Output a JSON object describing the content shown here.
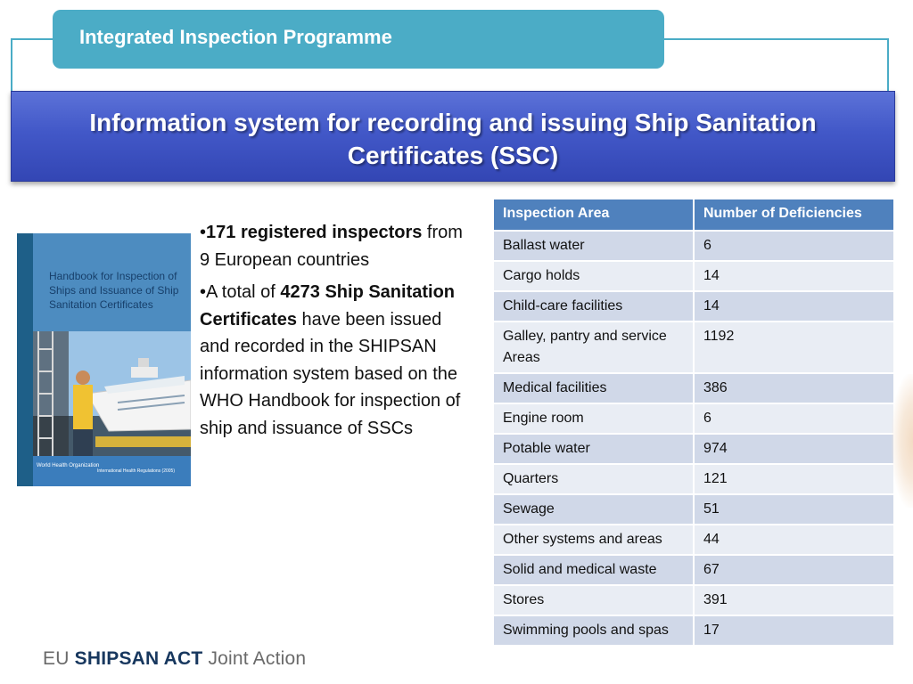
{
  "header": {
    "programme": "Integrated Inspection Programme",
    "title": "Information system for recording and issuing Ship Sanitation Certificates (SSC)"
  },
  "cover": {
    "title": "Handbook for Inspection of Ships and Issuance of Ship Sanitation Certificates",
    "org": "World Health Organization",
    "series": "International Health Regulations (2005)"
  },
  "bullets": [
    {
      "bold": "171 registered inspectors",
      "rest": " from 9 European countries"
    },
    {
      "pre": "A total of ",
      "bold": "4273 Ship Sanitation Certificates",
      "rest": " have been issued and recorded in the SHIPSAN information system based on the WHO Handbook for inspection of ship and issuance of SSCs"
    }
  ],
  "table": {
    "headers": [
      "Inspection Area",
      "Number of Deficiencies"
    ],
    "rows": [
      [
        "Ballast water",
        "6"
      ],
      [
        "Cargo holds",
        "14"
      ],
      [
        "Child-care facilities",
        "14"
      ],
      [
        "Galley, pantry and service Areas",
        "1192"
      ],
      [
        "Medical facilities",
        "386"
      ],
      [
        "Engine room",
        "6"
      ],
      [
        "Potable water",
        "974"
      ],
      [
        "Quarters",
        "121"
      ],
      [
        "Sewage",
        "51"
      ],
      [
        "Other systems and areas",
        "44"
      ],
      [
        "Solid and medical waste",
        "67"
      ],
      [
        "Stores",
        "391"
      ],
      [
        "Swimming pools and spas",
        "17"
      ]
    ]
  },
  "footer": {
    "eu": "EU",
    "shipsan": "SHIPSAN ACT",
    "joint": "Joint Action"
  },
  "colors": {
    "tab": "#4bacc6",
    "title_band": "#4258c8",
    "table_header": "#4f81bd",
    "row_odd": "#d0d8e8",
    "row_even": "#e9edf4"
  }
}
